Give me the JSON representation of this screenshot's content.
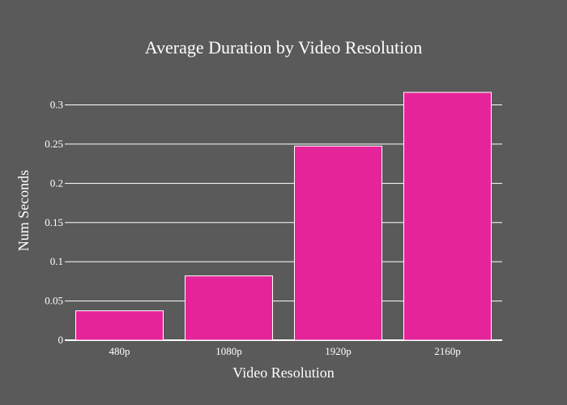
{
  "chart_data": {
    "type": "bar",
    "title": "Average Duration by Video Resolution",
    "xlabel": "Video Resolution",
    "ylabel": "Num Seconds",
    "categories": [
      "480p",
      "1080p",
      "1920p",
      "2160p"
    ],
    "values": [
      0.0375,
      0.082,
      0.2475,
      0.316
    ],
    "ylim": [
      0,
      0.315
    ],
    "yticks": [
      0,
      0.05,
      0.1,
      0.15,
      0.2,
      0.25,
      0.3
    ],
    "ytick_labels": [
      "0",
      "0.05",
      "0.1",
      "0.15",
      "0.2",
      "0.25",
      "0.3"
    ],
    "grid": true,
    "legend": "none",
    "colors": {
      "background": "#5a5a5a",
      "bar_fill": "#e6249a",
      "bar_stroke": "#ffffff",
      "grid": "#ffffff",
      "text": "#ffffff"
    }
  }
}
